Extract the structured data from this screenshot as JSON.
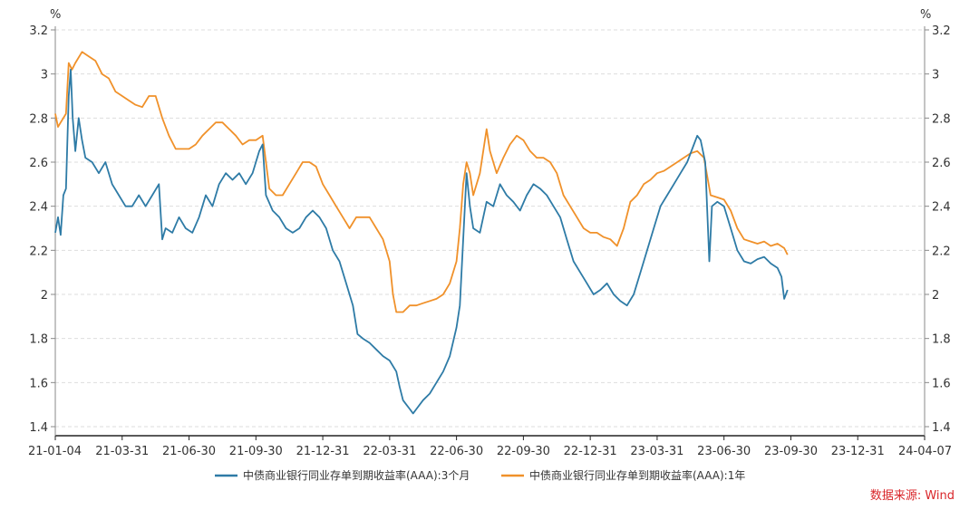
{
  "chart_data": {
    "type": "line",
    "title": "",
    "xlabel": "",
    "ylabel": "%",
    "y_unit_left": "%",
    "y_unit_right": "%",
    "ylim": [
      1.4,
      3.2
    ],
    "yticks": [
      "3.2",
      "3",
      "2.8",
      "2.6",
      "2.4",
      "2.2",
      "2",
      "1.8",
      "1.6",
      "1.4"
    ],
    "x_tick_labels": [
      "21-01-04",
      "21-03-31",
      "21-06-30",
      "21-09-30",
      "21-12-31",
      "22-03-31",
      "22-06-30",
      "22-09-30",
      "22-12-31",
      "23-03-31",
      "23-06-30",
      "23-09-30",
      "23-12-31",
      "24-04-07"
    ],
    "grid": "horizontal dashed",
    "legend_position": "bottom-center",
    "source": "数据来源: Wind",
    "colors": {
      "series1": "#2E7BA6",
      "series2": "#F0912A",
      "source": "#D9262A"
    },
    "series": [
      {
        "name": "中债商业银行同业存单到期收益率(AAA):3个月",
        "points": [
          [
            0,
            2.28
          ],
          [
            0.04,
            2.35
          ],
          [
            0.08,
            2.27
          ],
          [
            0.12,
            2.45
          ],
          [
            0.16,
            2.48
          ],
          [
            0.2,
            2.9
          ],
          [
            0.23,
            3.02
          ],
          [
            0.26,
            2.8
          ],
          [
            0.3,
            2.65
          ],
          [
            0.35,
            2.8
          ],
          [
            0.4,
            2.7
          ],
          [
            0.45,
            2.62
          ],
          [
            0.55,
            2.6
          ],
          [
            0.65,
            2.55
          ],
          [
            0.75,
            2.6
          ],
          [
            0.85,
            2.5
          ],
          [
            0.95,
            2.45
          ],
          [
            1.05,
            2.4
          ],
          [
            1.15,
            2.4
          ],
          [
            1.25,
            2.45
          ],
          [
            1.35,
            2.4
          ],
          [
            1.45,
            2.45
          ],
          [
            1.55,
            2.5
          ],
          [
            1.6,
            2.25
          ],
          [
            1.65,
            2.3
          ],
          [
            1.75,
            2.28
          ],
          [
            1.85,
            2.35
          ],
          [
            1.95,
            2.3
          ],
          [
            2.05,
            2.28
          ],
          [
            2.15,
            2.35
          ],
          [
            2.25,
            2.45
          ],
          [
            2.35,
            2.4
          ],
          [
            2.45,
            2.5
          ],
          [
            2.55,
            2.55
          ],
          [
            2.65,
            2.52
          ],
          [
            2.75,
            2.55
          ],
          [
            2.85,
            2.5
          ],
          [
            2.95,
            2.55
          ],
          [
            3.05,
            2.65
          ],
          [
            3.1,
            2.68
          ],
          [
            3.15,
            2.45
          ],
          [
            3.25,
            2.38
          ],
          [
            3.35,
            2.35
          ],
          [
            3.45,
            2.3
          ],
          [
            3.55,
            2.28
          ],
          [
            3.65,
            2.3
          ],
          [
            3.75,
            2.35
          ],
          [
            3.85,
            2.38
          ],
          [
            3.95,
            2.35
          ],
          [
            4.05,
            2.3
          ],
          [
            4.15,
            2.2
          ],
          [
            4.25,
            2.15
          ],
          [
            4.35,
            2.05
          ],
          [
            4.45,
            1.95
          ],
          [
            4.52,
            1.82
          ],
          [
            4.6,
            1.8
          ],
          [
            4.7,
            1.78
          ],
          [
            4.8,
            1.75
          ],
          [
            4.9,
            1.72
          ],
          [
            5.0,
            1.7
          ],
          [
            5.1,
            1.65
          ],
          [
            5.15,
            1.58
          ],
          [
            5.2,
            1.52
          ],
          [
            5.25,
            1.5
          ],
          [
            5.3,
            1.48
          ],
          [
            5.35,
            1.46
          ],
          [
            5.4,
            1.48
          ],
          [
            5.5,
            1.52
          ],
          [
            5.6,
            1.55
          ],
          [
            5.7,
            1.6
          ],
          [
            5.8,
            1.65
          ],
          [
            5.9,
            1.72
          ],
          [
            6.0,
            1.85
          ],
          [
            6.05,
            1.95
          ],
          [
            6.1,
            2.25
          ],
          [
            6.15,
            2.55
          ],
          [
            6.2,
            2.4
          ],
          [
            6.25,
            2.3
          ],
          [
            6.35,
            2.28
          ],
          [
            6.45,
            2.42
          ],
          [
            6.55,
            2.4
          ],
          [
            6.65,
            2.5
          ],
          [
            6.75,
            2.45
          ],
          [
            6.85,
            2.42
          ],
          [
            6.95,
            2.38
          ],
          [
            7.05,
            2.45
          ],
          [
            7.15,
            2.5
          ],
          [
            7.25,
            2.48
          ],
          [
            7.35,
            2.45
          ],
          [
            7.45,
            2.4
          ],
          [
            7.55,
            2.35
          ],
          [
            7.65,
            2.25
          ],
          [
            7.75,
            2.15
          ],
          [
            7.85,
            2.1
          ],
          [
            7.95,
            2.05
          ],
          [
            8.05,
            2.0
          ],
          [
            8.15,
            2.02
          ],
          [
            8.25,
            2.05
          ],
          [
            8.35,
            2.0
          ],
          [
            8.45,
            1.97
          ],
          [
            8.55,
            1.95
          ],
          [
            8.65,
            2.0
          ],
          [
            8.75,
            2.1
          ],
          [
            8.85,
            2.2
          ],
          [
            8.95,
            2.3
          ],
          [
            9.05,
            2.4
          ],
          [
            9.15,
            2.45
          ],
          [
            9.25,
            2.5
          ],
          [
            9.35,
            2.55
          ],
          [
            9.45,
            2.6
          ],
          [
            9.55,
            2.68
          ],
          [
            9.6,
            2.72
          ],
          [
            9.65,
            2.7
          ],
          [
            9.72,
            2.6
          ],
          [
            9.78,
            2.15
          ],
          [
            9.82,
            2.4
          ],
          [
            9.9,
            2.42
          ],
          [
            10.0,
            2.4
          ],
          [
            10.1,
            2.3
          ],
          [
            10.2,
            2.2
          ],
          [
            10.3,
            2.15
          ],
          [
            10.4,
            2.14
          ],
          [
            10.5,
            2.16
          ],
          [
            10.6,
            2.17
          ],
          [
            10.7,
            2.14
          ],
          [
            10.8,
            2.12
          ],
          [
            10.86,
            2.08
          ],
          [
            10.9,
            1.98
          ],
          [
            10.95,
            2.02
          ]
        ]
      },
      {
        "name": "中债商业银行同业存单到期收益率(AAA):1年",
        "points": [
          [
            0,
            2.82
          ],
          [
            0.04,
            2.76
          ],
          [
            0.08,
            2.78
          ],
          [
            0.12,
            2.8
          ],
          [
            0.16,
            2.82
          ],
          [
            0.2,
            3.05
          ],
          [
            0.25,
            3.02
          ],
          [
            0.3,
            3.05
          ],
          [
            0.4,
            3.1
          ],
          [
            0.5,
            3.08
          ],
          [
            0.6,
            3.06
          ],
          [
            0.7,
            3.0
          ],
          [
            0.8,
            2.98
          ],
          [
            0.9,
            2.92
          ],
          [
            1.0,
            2.9
          ],
          [
            1.1,
            2.88
          ],
          [
            1.2,
            2.86
          ],
          [
            1.3,
            2.85
          ],
          [
            1.4,
            2.9
          ],
          [
            1.5,
            2.9
          ],
          [
            1.6,
            2.8
          ],
          [
            1.7,
            2.72
          ],
          [
            1.8,
            2.66
          ],
          [
            1.9,
            2.66
          ],
          [
            2.0,
            2.66
          ],
          [
            2.1,
            2.68
          ],
          [
            2.2,
            2.72
          ],
          [
            2.3,
            2.75
          ],
          [
            2.4,
            2.78
          ],
          [
            2.5,
            2.78
          ],
          [
            2.6,
            2.75
          ],
          [
            2.7,
            2.72
          ],
          [
            2.8,
            2.68
          ],
          [
            2.9,
            2.7
          ],
          [
            3.0,
            2.7
          ],
          [
            3.1,
            2.72
          ],
          [
            3.15,
            2.6
          ],
          [
            3.2,
            2.48
          ],
          [
            3.3,
            2.45
          ],
          [
            3.4,
            2.45
          ],
          [
            3.5,
            2.5
          ],
          [
            3.6,
            2.55
          ],
          [
            3.7,
            2.6
          ],
          [
            3.8,
            2.6
          ],
          [
            3.9,
            2.58
          ],
          [
            4.0,
            2.5
          ],
          [
            4.1,
            2.45
          ],
          [
            4.2,
            2.4
          ],
          [
            4.3,
            2.35
          ],
          [
            4.4,
            2.3
          ],
          [
            4.5,
            2.35
          ],
          [
            4.6,
            2.35
          ],
          [
            4.7,
            2.35
          ],
          [
            4.8,
            2.3
          ],
          [
            4.9,
            2.25
          ],
          [
            5.0,
            2.15
          ],
          [
            5.05,
            2.0
          ],
          [
            5.1,
            1.92
          ],
          [
            5.2,
            1.92
          ],
          [
            5.3,
            1.95
          ],
          [
            5.4,
            1.95
          ],
          [
            5.5,
            1.96
          ],
          [
            5.6,
            1.97
          ],
          [
            5.7,
            1.98
          ],
          [
            5.8,
            2.0
          ],
          [
            5.9,
            2.05
          ],
          [
            6.0,
            2.15
          ],
          [
            6.05,
            2.3
          ],
          [
            6.1,
            2.5
          ],
          [
            6.15,
            2.6
          ],
          [
            6.2,
            2.55
          ],
          [
            6.25,
            2.45
          ],
          [
            6.35,
            2.55
          ],
          [
            6.45,
            2.75
          ],
          [
            6.5,
            2.65
          ],
          [
            6.6,
            2.55
          ],
          [
            6.7,
            2.62
          ],
          [
            6.8,
            2.68
          ],
          [
            6.9,
            2.72
          ],
          [
            7.0,
            2.7
          ],
          [
            7.1,
            2.65
          ],
          [
            7.2,
            2.62
          ],
          [
            7.3,
            2.62
          ],
          [
            7.4,
            2.6
          ],
          [
            7.5,
            2.55
          ],
          [
            7.6,
            2.45
          ],
          [
            7.7,
            2.4
          ],
          [
            7.8,
            2.35
          ],
          [
            7.9,
            2.3
          ],
          [
            8.0,
            2.28
          ],
          [
            8.1,
            2.28
          ],
          [
            8.2,
            2.26
          ],
          [
            8.3,
            2.25
          ],
          [
            8.4,
            2.22
          ],
          [
            8.5,
            2.3
          ],
          [
            8.6,
            2.42
          ],
          [
            8.7,
            2.45
          ],
          [
            8.8,
            2.5
          ],
          [
            8.9,
            2.52
          ],
          [
            9.0,
            2.55
          ],
          [
            9.1,
            2.56
          ],
          [
            9.2,
            2.58
          ],
          [
            9.3,
            2.6
          ],
          [
            9.4,
            2.62
          ],
          [
            9.5,
            2.64
          ],
          [
            9.6,
            2.65
          ],
          [
            9.7,
            2.62
          ],
          [
            9.8,
            2.45
          ],
          [
            9.9,
            2.44
          ],
          [
            10.0,
            2.43
          ],
          [
            10.1,
            2.38
          ],
          [
            10.2,
            2.3
          ],
          [
            10.3,
            2.25
          ],
          [
            10.4,
            2.24
          ],
          [
            10.5,
            2.23
          ],
          [
            10.6,
            2.24
          ],
          [
            10.7,
            2.22
          ],
          [
            10.8,
            2.23
          ],
          [
            10.9,
            2.21
          ],
          [
            10.95,
            2.18
          ]
        ]
      }
    ]
  }
}
